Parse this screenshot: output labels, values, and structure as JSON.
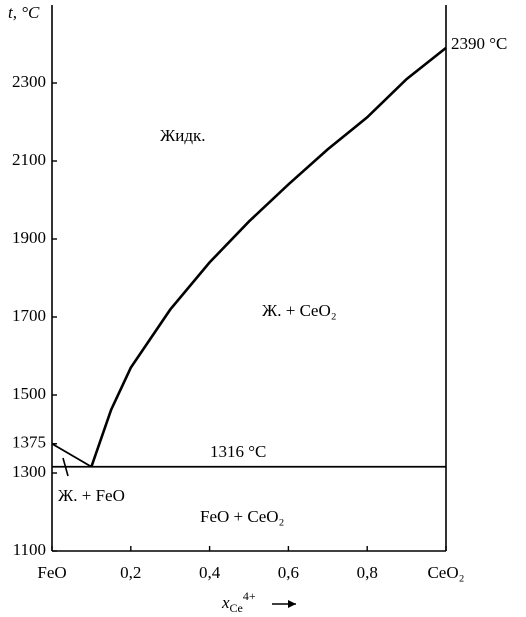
{
  "chart_data": {
    "type": "line",
    "ylabel": "t, °C",
    "xlabel": {
      "text": "x",
      "sub": "Ce",
      "sup": "4+"
    },
    "xlim": [
      0,
      1
    ],
    "ylim": [
      1100,
      2500
    ],
    "xticks": [
      {
        "value": 0,
        "label": "FeO"
      },
      {
        "value": 0.2,
        "label": "0,2"
      },
      {
        "value": 0.4,
        "label": "0,4"
      },
      {
        "value": 0.6,
        "label": "0,6"
      },
      {
        "value": 0.8,
        "label": "0,8"
      },
      {
        "value": 1,
        "label": "CeO₂"
      }
    ],
    "yticks": [
      1100,
      1300,
      1375,
      1500,
      1700,
      1900,
      2100,
      2300
    ],
    "series": [
      {
        "color": "#000000",
        "x": [
          0.1,
          0.15,
          0.2,
          0.3,
          0.4,
          0.5,
          0.6,
          0.7,
          0.8,
          0.9,
          1
        ],
        "values": [
          1316,
          1462,
          1570,
          1719,
          1840,
          1945,
          2040,
          2130,
          2212,
          2310,
          2390
        ]
      },
      {
        "color": "#000000",
        "x": [
          0,
          0.1
        ],
        "values": [
          1375,
          1316
        ]
      },
      {
        "color": "#000000",
        "x": [
          0,
          1
        ],
        "values": [
          1316,
          1316
        ]
      }
    ],
    "annotations": [
      "Жидк.",
      "Ж.  + CeO₂",
      "1316 °C",
      "Ж.  + FeO",
      "FeO  + CeO₂",
      "2390 °C"
    ]
  }
}
